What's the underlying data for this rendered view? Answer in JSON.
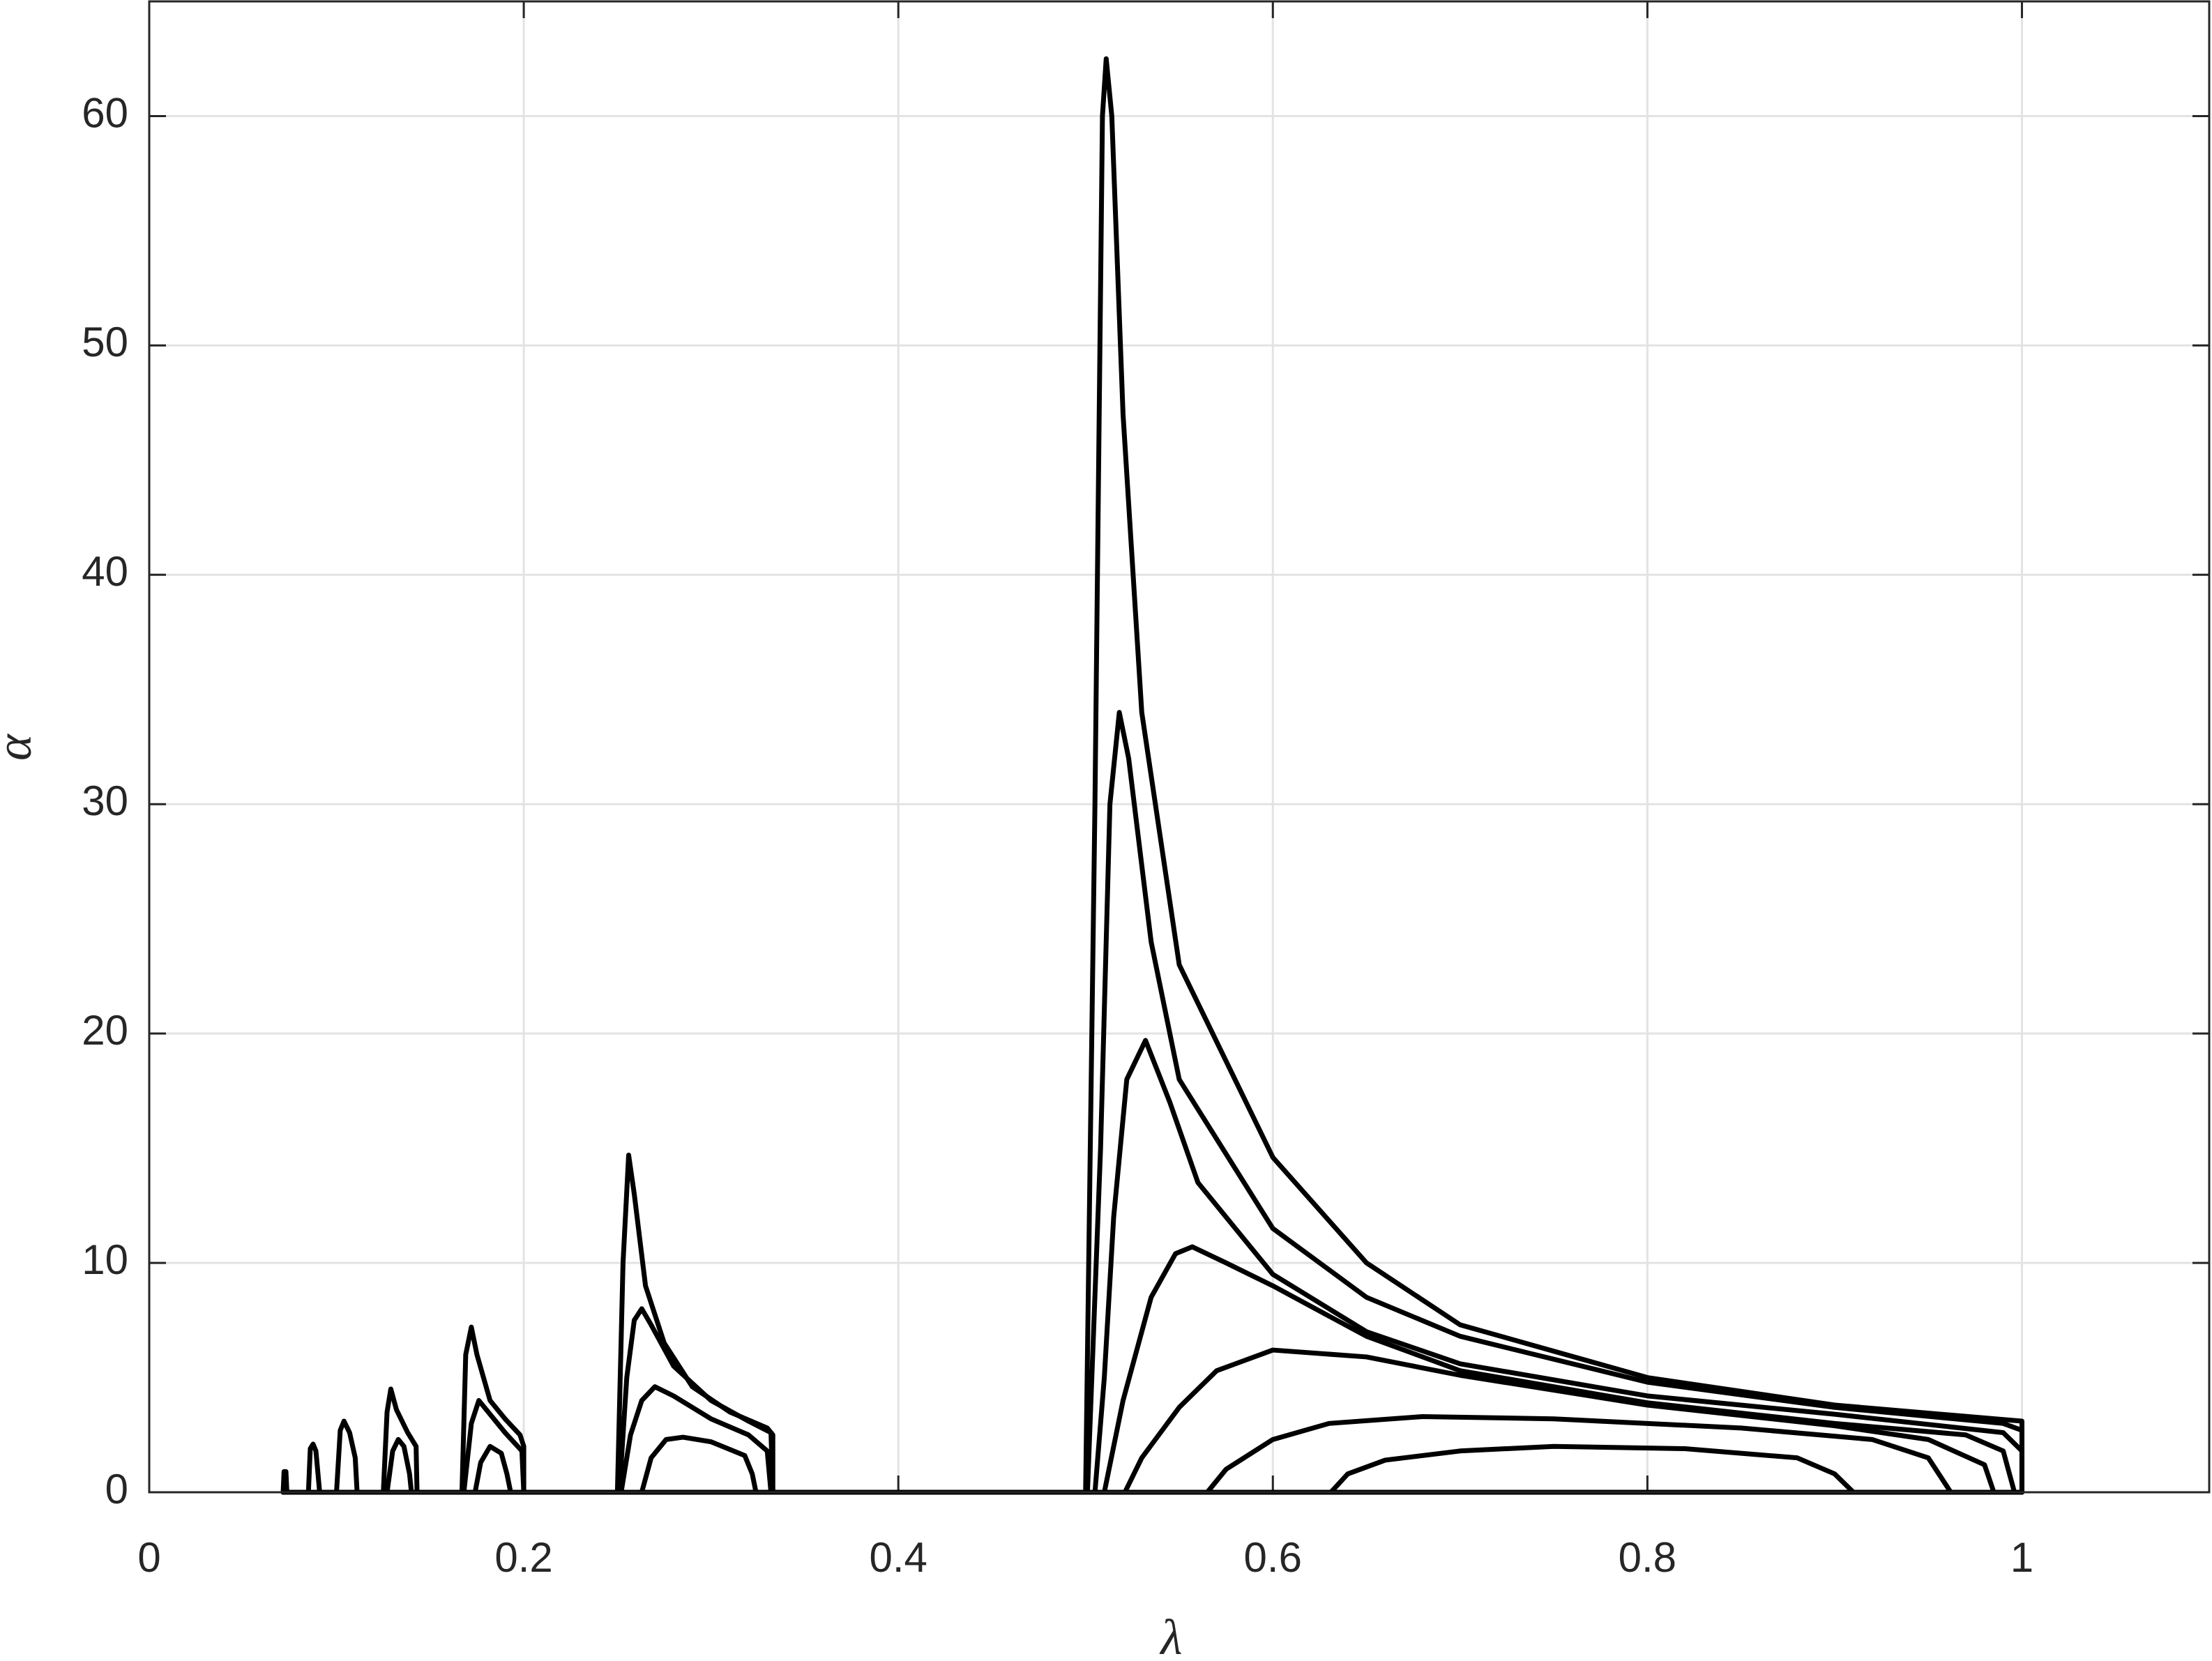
{
  "chart_data": {
    "type": "line",
    "x_label": "λ",
    "y_label": "α",
    "xlim": [
      0,
      1.1
    ],
    "ylim": [
      0,
      65
    ],
    "xticks": [
      0,
      0.2,
      0.4,
      0.6,
      0.8,
      1
    ],
    "yticks": [
      0,
      10,
      20,
      30,
      40,
      50,
      60
    ],
    "grid": true,
    "color": "#000000",
    "series": [
      {
        "x": [
          0.0715,
          1
        ],
        "values": [
          0,
          0
        ]
      },
      {
        "x": [
          0.5,
          0.505,
          0.509,
          0.511,
          0.514,
          0.52,
          0.53,
          0.55,
          0.6,
          0.65,
          0.7,
          0.8,
          0.9,
          1.0,
          1.0
        ],
        "values": [
          0,
          30,
          60,
          62.5,
          60,
          47,
          34,
          23,
          14.6,
          10,
          7.3,
          5,
          3.8,
          3.1,
          0
        ]
      },
      {
        "x": [
          0.501,
          0.508,
          0.513,
          0.518,
          0.523,
          0.535,
          0.55,
          0.6,
          0.65,
          0.7,
          0.8,
          0.9,
          0.99,
          1.0,
          1.0
        ],
        "values": [
          0,
          15,
          30,
          34,
          32,
          24,
          18,
          11.5,
          8.5,
          6.8,
          4.8,
          3.7,
          3,
          2.7,
          0
        ]
      },
      {
        "x": [
          0.505,
          0.51,
          0.515,
          0.522,
          0.532,
          0.545,
          0.56,
          0.6,
          0.65,
          0.7,
          0.8,
          0.9,
          0.99,
          1.0,
          1.0
        ],
        "values": [
          0,
          5,
          12,
          18,
          19.7,
          17,
          13.5,
          9.5,
          7,
          5.6,
          4.2,
          3.4,
          2.6,
          1.8,
          0
        ]
      },
      {
        "x": [
          0.51,
          0.52,
          0.535,
          0.548,
          0.557,
          0.575,
          0.6,
          0.65,
          0.7,
          0.8,
          0.9,
          0.97,
          0.99,
          0.996
        ],
        "values": [
          0,
          4,
          8.5,
          10.4,
          10.7,
          10,
          9,
          6.8,
          5.3,
          3.9,
          3.0,
          2.5,
          1.8,
          0
        ]
      },
      {
        "x": [
          0.521,
          0.53,
          0.55,
          0.57,
          0.6,
          0.65,
          0.7,
          0.8,
          0.9,
          0.95,
          0.98,
          0.985
        ],
        "values": [
          0,
          1.5,
          3.7,
          5.3,
          6.2,
          5.9,
          5.1,
          3.8,
          2.9,
          2.3,
          1.2,
          0
        ]
      },
      {
        "x": [
          0.565,
          0.575,
          0.6,
          0.63,
          0.68,
          0.75,
          0.85,
          0.92,
          0.95,
          0.962
        ],
        "values": [
          0,
          1,
          2.3,
          3.0,
          3.3,
          3.2,
          2.8,
          2.3,
          1.5,
          0
        ]
      },
      {
        "x": [
          0.631,
          0.64,
          0.66,
          0.7,
          0.75,
          0.82,
          0.88,
          0.9,
          0.91
        ],
        "values": [
          0,
          0.8,
          1.4,
          1.8,
          2.0,
          1.9,
          1.5,
          0.8,
          0
        ]
      },
      {
        "x": [
          0.25,
          0.253,
          0.256,
          0.259,
          0.265,
          0.275,
          0.29,
          0.31,
          0.33,
          0.333,
          0.333
        ],
        "values": [
          0,
          10,
          14.7,
          13,
          9,
          6.5,
          4.6,
          3.5,
          2.8,
          2.5,
          0
        ]
      },
      {
        "x": [
          0.251,
          0.255,
          0.259,
          0.263,
          0.268,
          0.28,
          0.3,
          0.32,
          0.332,
          0.333
        ],
        "values": [
          0,
          5,
          7.5,
          8,
          7.3,
          5.5,
          4,
          3.1,
          2.6,
          0
        ]
      },
      {
        "x": [
          0.252,
          0.257,
          0.263,
          0.27,
          0.28,
          0.3,
          0.32,
          0.33,
          0.332
        ],
        "values": [
          0,
          2.5,
          4,
          4.6,
          4.2,
          3.2,
          2.5,
          1.8,
          0
        ]
      },
      {
        "x": [
          0.263,
          0.268,
          0.276,
          0.285,
          0.3,
          0.318,
          0.322,
          0.324
        ],
        "values": [
          0,
          1.5,
          2.3,
          2.4,
          2.2,
          1.6,
          0.8,
          0
        ]
      },
      {
        "x": [
          0.167,
          0.169,
          0.172,
          0.175,
          0.182,
          0.19,
          0.198,
          0.2,
          0.2
        ],
        "values": [
          0,
          6,
          7.2,
          6,
          4,
          3.2,
          2.5,
          2,
          0
        ]
      },
      {
        "x": [
          0.168,
          0.172,
          0.176,
          0.182,
          0.19,
          0.199,
          0.2
        ],
        "values": [
          0,
          3,
          4,
          3.4,
          2.6,
          1.8,
          0
        ]
      },
      {
        "x": [
          0.174,
          0.177,
          0.182,
          0.188,
          0.191,
          0.193
        ],
        "values": [
          0,
          1.3,
          2,
          1.7,
          0.8,
          0
        ]
      },
      {
        "x": [
          0.125,
          0.127,
          0.129,
          0.132,
          0.138,
          0.1425,
          0.143
        ],
        "values": [
          0,
          3.5,
          4.5,
          3.6,
          2.6,
          2,
          0
        ]
      },
      {
        "x": [
          0.127,
          0.13,
          0.133,
          0.136,
          0.139,
          0.14
        ],
        "values": [
          0,
          1.8,
          2.3,
          2,
          0.8,
          0
        ]
      },
      {
        "x": [
          0.1,
          0.102,
          0.104,
          0.107,
          0.11,
          0.111
        ],
        "values": [
          0,
          2.7,
          3.1,
          2.6,
          1.5,
          0
        ]
      },
      {
        "x": [
          0.085,
          0.086,
          0.0875,
          0.089,
          0.091
        ],
        "values": [
          0,
          1.9,
          2.1,
          1.8,
          0
        ]
      },
      {
        "x": [
          0.0715,
          0.072,
          0.073,
          0.0735
        ],
        "values": [
          0,
          0.9,
          0.9,
          0
        ]
      }
    ]
  }
}
